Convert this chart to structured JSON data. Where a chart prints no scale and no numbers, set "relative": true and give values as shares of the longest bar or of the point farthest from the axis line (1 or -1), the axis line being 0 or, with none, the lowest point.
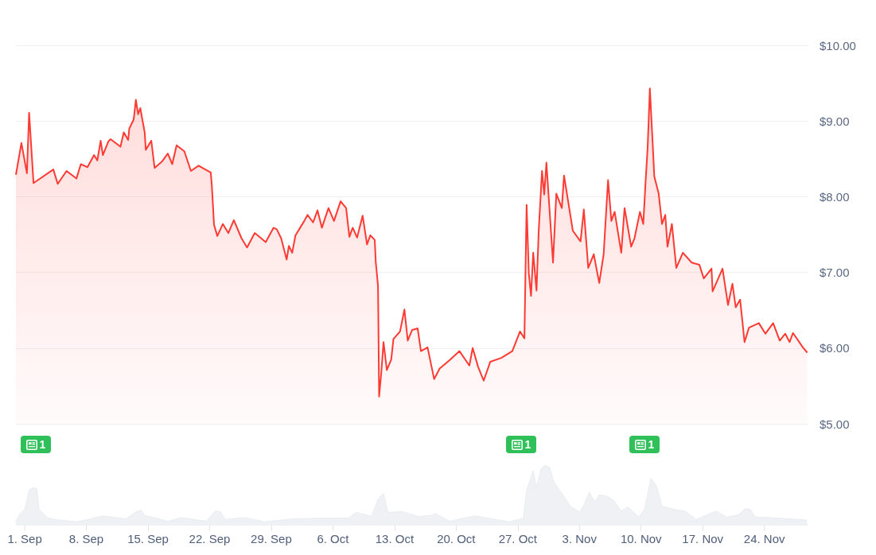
{
  "chart_data": [
    {
      "type": "area",
      "x": [
        "--08-31T00:00",
        "--08-31T15:00",
        "--09-01T06:00",
        "--09-01T12:00",
        "--09-02T00:00",
        "--09-04T06:00",
        "--09-04T18:00",
        "--09-05T18:00",
        "--09-06T21:00",
        "--09-07T09:00",
        "--09-08T03:00",
        "--09-08T21:00",
        "--09-09T06:00",
        "--09-09T15:00",
        "--09-09T21:00",
        "--09-10T12:00",
        "--09-10T18:00",
        "--09-11T21:00",
        "--09-12T06:00",
        "--09-12T18:00",
        "--09-12T21:00",
        "--09-13T09:00",
        "--09-13T15:00",
        "--09-13T21:00",
        "--09-14T03:00",
        "--09-14T15:00",
        "--09-14T18:00",
        "--09-15T09:00",
        "--09-15T18:00",
        "--09-16T15:00",
        "--09-17T06:00",
        "--09-17T18:00",
        "--09-18T06:00",
        "--09-19T03:00",
        "--09-19T21:00",
        "--09-20T18:00",
        "--09-21T12:00",
        "--09-22T03:00",
        "--09-22T06:00",
        "--09-22T12:00",
        "--09-22T21:00",
        "--09-23T12:00",
        "--09-24T03:00",
        "--09-24T18:00",
        "--09-25T15:00",
        "--09-26T06:00",
        "--09-27T03:00",
        "--09-28T09:00",
        "--09-29T06:00",
        "--09-29T15:00",
        "--09-30T03:00",
        "--09-30T18:00",
        "--10-01T00:00",
        "--10-01T09:00",
        "--10-01T18:00",
        "--10-02T18:00",
        "--10-03T03:00",
        "--10-03T18:00",
        "--10-04T06:00",
        "--10-04T18:00",
        "--10-05T12:00",
        "--10-06T03:00",
        "--10-06T21:00",
        "--10-07T12:00",
        "--10-07T21:00",
        "--10-08T06:00",
        "--10-08T18:00",
        "--10-09T09:00",
        "--10-09T21:00",
        "--10-10T06:00",
        "--10-10T18:00",
        "--10-10T21:00",
        "--10-11T03:00",
        "--10-11T06:00",
        "--10-11T12:00",
        "--10-11T18:00",
        "--10-12T03:00",
        "--10-12T15:00",
        "--10-12T21:00",
        "--10-13T15:00",
        "--10-14T03:00",
        "--10-14T12:00",
        "--10-15T00:00",
        "--10-15T15:00",
        "--10-16T00:00",
        "--10-16T18:00",
        "--10-17T12:00",
        "--10-18T03:00",
        "--10-19T06:00",
        "--10-20T09:00",
        "--10-21T12:00",
        "--10-21T21:00",
        "--10-22T12:00",
        "--10-23T03:00",
        "--10-23T21:00",
        "--10-25T03:00",
        "--10-26T09:00",
        "--10-27T06:00",
        "--10-27T18:00",
        "--10-28T00:00",
        "--10-28T06:00",
        "--10-28T12:00",
        "--10-28T18:00",
        "--10-29T03:00",
        "--10-29T09:00",
        "--10-29T18:00",
        "--10-30T00:00",
        "--10-30T06:00",
        "--10-31T00:00",
        "--10-31T09:00",
        "--11-01T00:00",
        "--11-01T06:00",
        "--11-02T06:00",
        "--11-03T03:00",
        "--11-03T12:00",
        "--11-04T00:00",
        "--11-04T15:00",
        "--11-05T06:00",
        "--11-05T18:00",
        "--11-06T06:00",
        "--11-06T15:00",
        "--11-07T00:00",
        "--11-07T18:00",
        "--11-08T03:00",
        "--11-08T21:00",
        "--11-09T06:00",
        "--11-09T21:00",
        "--11-10T06:00",
        "--11-10T12:00",
        "--11-10T18:00",
        "--11-11T00:00",
        "--11-11T09:00",
        "--11-11T12:00",
        "--11-12T00:00",
        "--11-12T09:00",
        "--11-12T18:00",
        "--11-13T00:00",
        "--11-13T12:00",
        "--11-14T00:00",
        "--11-14T18:00",
        "--11-15T18:00",
        "--11-16T15:00",
        "--11-17T03:00",
        "--11-18T00:00",
        "--11-18T03:00",
        "--11-19T06:00",
        "--11-19T21:00",
        "--11-20T09:00",
        "--11-20T18:00",
        "--11-21T06:00",
        "--11-21T18:00",
        "--11-22T06:00",
        "--11-23T09:00",
        "--11-24T03:00",
        "--11-25T00:00",
        "--11-25T18:00",
        "--11-26T09:00",
        "--11-26T21:00",
        "--11-27T06:00",
        "--11-28T09:00",
        "--11-28T21:00"
      ],
      "series": [
        {
          "color": "#ff3a33",
          "values": [
            8.29,
            8.71,
            8.31,
            9.11,
            8.18,
            8.36,
            8.17,
            8.34,
            8.24,
            8.43,
            8.39,
            8.55,
            8.48,
            8.74,
            8.55,
            8.73,
            8.76,
            8.66,
            8.85,
            8.75,
            8.9,
            9.02,
            9.28,
            9.09,
            9.17,
            8.85,
            8.62,
            8.74,
            8.38,
            8.47,
            8.57,
            8.43,
            8.68,
            8.6,
            8.34,
            8.41,
            8.36,
            8.32,
            8.15,
            7.63,
            7.48,
            7.64,
            7.52,
            7.69,
            7.45,
            7.33,
            7.52,
            7.4,
            7.59,
            7.57,
            7.45,
            7.17,
            7.35,
            7.26,
            7.49,
            7.68,
            7.76,
            7.66,
            7.82,
            7.59,
            7.85,
            7.68,
            7.94,
            7.85,
            7.47,
            7.59,
            7.46,
            7.75,
            7.37,
            7.49,
            7.43,
            7.13,
            6.82,
            5.36,
            5.68,
            6.08,
            5.71,
            5.85,
            6.12,
            6.22,
            6.51,
            6.1,
            6.24,
            6.26,
            5.96,
            6.01,
            5.59,
            5.73,
            5.84,
            5.96,
            5.77,
            6.0,
            5.75,
            5.57,
            5.82,
            5.87,
            5.96,
            6.22,
            6.13,
            7.89,
            6.99,
            6.69,
            7.26,
            6.76,
            7.55,
            8.34,
            8.03,
            8.45,
            7.13,
            8.04,
            7.85,
            8.28,
            7.55,
            7.41,
            7.83,
            7.06,
            7.24,
            6.86,
            7.24,
            8.22,
            7.68,
            7.8,
            7.26,
            7.85,
            7.34,
            7.45,
            7.8,
            7.64,
            8.17,
            8.66,
            9.43,
            8.57,
            8.27,
            8.04,
            7.64,
            7.76,
            7.34,
            7.64,
            7.06,
            7.26,
            7.13,
            7.1,
            6.92,
            7.05,
            6.75,
            7.05,
            6.57,
            6.85,
            6.54,
            6.64,
            6.08,
            6.27,
            6.33,
            6.19,
            6.33,
            6.1,
            6.19,
            6.08,
            6.2,
            6.01,
            5.94
          ]
        }
      ],
      "xlim": [
        "--08-31",
        "--11-29"
      ],
      "ylim": [
        5,
        10
      ],
      "yticks": [
        {
          "value": 5,
          "label": "$5.00"
        },
        {
          "value": 6,
          "label": "$6.00"
        },
        {
          "value": 7,
          "label": "$7.00"
        },
        {
          "value": 8,
          "label": "$8.00"
        },
        {
          "value": 9,
          "label": "$9.00"
        },
        {
          "value": 10,
          "label": "$10.00"
        }
      ],
      "grid": "y",
      "tick_labels": "y",
      "marker": "none",
      "annotations": [
        "1",
        "1",
        "1"
      ]
    },
    {
      "type": "area",
      "relative": true,
      "x": [
        "--08-31T00:00",
        "--08-31T12:00",
        "--09-01T00:00",
        "--09-01T12:00",
        "--09-01T21:00",
        "--09-02T09:00",
        "--09-02T15:00",
        "--09-03T15:00",
        "--09-04T21:00",
        "--09-07T00:00",
        "--09-09T21:00",
        "--09-12T12:00",
        "--09-13T18:00",
        "--09-14T06:00",
        "--09-14T15:00",
        "--09-17T06:00",
        "--09-18T18:00",
        "--09-21T15:00",
        "--09-22T15:00",
        "--09-23T06:00",
        "--09-23T18:00",
        "--09-26T00:00",
        "--09-28T06:00",
        "--10-01T12:00",
        "--10-04T15:00",
        "--10-07T18:00",
        "--10-08T15:00",
        "--10-10T09:00",
        "--10-11T03:00",
        "--10-11T18:00",
        "--10-12T06:00",
        "--10-13T21:00",
        "--10-15T18:00",
        "--10-17T06:00",
        "--10-17T15:00",
        "--10-19T06:00",
        "--10-22T03:00",
        "--10-26T00:00",
        "--10-27T15:00",
        "--10-28T00:00",
        "--10-28T18:00",
        "--10-29T03:00",
        "--10-29T15:00",
        "--10-30T03:00",
        "--10-30T15:00",
        "--10-31T03:00",
        "--11-01T03:00",
        "--11-02T00:00",
        "--11-03T00:00",
        "--11-03T12:00",
        "--11-04T03:00",
        "--11-04T18:00",
        "--11-05T06:00",
        "--11-06T03:00",
        "--11-06T21:00",
        "--11-07T18:00",
        "--11-08T12:00",
        "--11-09T18:00",
        "--11-10T09:00",
        "--11-11T03:00",
        "--11-11T18:00",
        "--11-12T09:00",
        "--11-14T00:00",
        "--11-15T00:00",
        "--11-16T06:00",
        "--11-18T12:00",
        "--11-19T18:00",
        "--11-21T03:00",
        "--11-21T18:00",
        "--11-22T09:00",
        "--11-23T00:00",
        "--11-24T15:00",
        "--11-27T21:00",
        "--11-28T21:00"
      ],
      "series": [
        {
          "color": "#e8ecf0",
          "values": [
            0.06,
            0.19,
            0.26,
            0.58,
            0.62,
            0.61,
            0.26,
            0.11,
            0.08,
            0.05,
            0.15,
            0.1,
            0.23,
            0.24,
            0.16,
            0.06,
            0.12,
            0.06,
            0.23,
            0.22,
            0.09,
            0.12,
            0.05,
            0.1,
            0.11,
            0.11,
            0.21,
            0.14,
            0.43,
            0.53,
            0.21,
            0.22,
            0.14,
            0.16,
            0.19,
            0.06,
            0.15,
            0.05,
            0.11,
            0.58,
            0.91,
            0.63,
            0.93,
            1,
            0.96,
            0.71,
            0.5,
            0.31,
            0.21,
            0.33,
            0.55,
            0.38,
            0.5,
            0.48,
            0.41,
            0.23,
            0.3,
            0.13,
            0.26,
            0.78,
            0.65,
            0.31,
            0.25,
            0.23,
            0.09,
            0.23,
            0.13,
            0.17,
            0.27,
            0.26,
            0.13,
            0.12,
            0.09,
            0.08
          ]
        }
      ],
      "xlim": [
        "--08-31",
        "--11-29"
      ],
      "xticks": [
        {
          "value": "--09-01",
          "label": "1. Sep"
        },
        {
          "value": "--09-08",
          "label": "8. Sep"
        },
        {
          "value": "--09-15",
          "label": "15. Sep"
        },
        {
          "value": "--09-22",
          "label": "22. Sep"
        },
        {
          "value": "--09-29",
          "label": "29. Sep"
        },
        {
          "value": "--10-06",
          "label": "6. Oct"
        },
        {
          "value": "--10-13",
          "label": "13. Oct"
        },
        {
          "value": "--10-20",
          "label": "20. Oct"
        },
        {
          "value": "--10-27",
          "label": "27. Oct"
        },
        {
          "value": "--11-03",
          "label": "3. Nov"
        },
        {
          "value": "--11-10",
          "label": "10. Nov"
        },
        {
          "value": "--11-17",
          "label": "17. Nov"
        },
        {
          "value": "--11-24",
          "label": "24. Nov"
        }
      ],
      "tick_labels": "x"
    }
  ]
}
